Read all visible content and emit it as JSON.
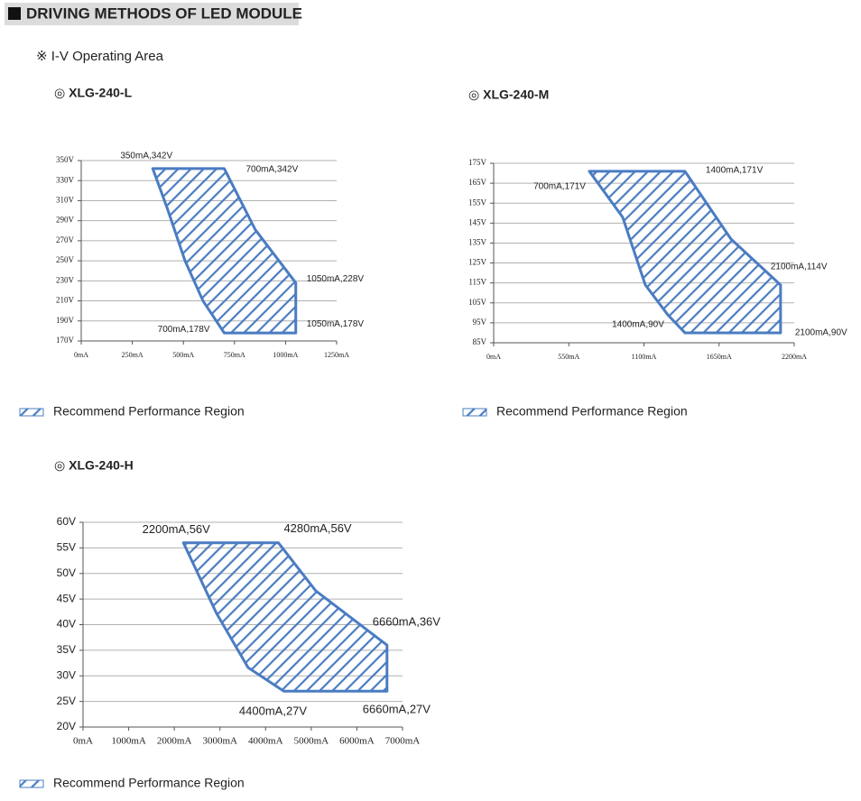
{
  "header": {
    "title": "DRIVING METHODS OF LED MODULE",
    "subtitle": "※ I-V Operating Area"
  },
  "chart_data": [
    {
      "type": "area",
      "title": "◎ XLG-240-L",
      "xlim": [
        0,
        1250
      ],
      "ylim": [
        170,
        350
      ],
      "xticks": [
        {
          "value": 0,
          "label": "0mA"
        },
        {
          "value": 250,
          "label": "250mA"
        },
        {
          "value": 500,
          "label": "500mA"
        },
        {
          "value": 750,
          "label": "750mA"
        },
        {
          "value": 1000,
          "label": "1000mA"
        },
        {
          "value": 1250,
          "label": "1250mA"
        }
      ],
      "yticks": [
        {
          "value": 170,
          "label": "170V"
        },
        {
          "value": 190,
          "label": "190V"
        },
        {
          "value": 210,
          "label": "210V"
        },
        {
          "value": 230,
          "label": "230V"
        },
        {
          "value": 250,
          "label": "250V"
        },
        {
          "value": 270,
          "label": "270V"
        },
        {
          "value": 290,
          "label": "290V"
        },
        {
          "value": 310,
          "label": "310V"
        },
        {
          "value": 330,
          "label": "330V"
        },
        {
          "value": 350,
          "label": "350V"
        }
      ],
      "grid": true,
      "series": [
        {
          "name": "Recommend Performance Region",
          "color": "#4a7cc2",
          "x": [
            350,
            700,
            852,
            1050,
            1050,
            700,
            596,
            508,
            420
          ],
          "values": [
            342,
            342,
            281,
            228,
            178,
            178,
            210,
            250,
            303
          ]
        }
      ],
      "annotations": [
        {
          "text": "350mA,342V",
          "x": 350,
          "y": 342
        },
        {
          "text": "700mA,342V",
          "x": 700,
          "y": 342
        },
        {
          "text": "1050mA,228V",
          "x": 1050,
          "y": 228
        },
        {
          "text": "1050mA,178V",
          "x": 1050,
          "y": 178
        },
        {
          "text": "700mA,178V",
          "x": 700,
          "y": 178
        }
      ]
    },
    {
      "type": "area",
      "title": "◎ XLG-240-M",
      "xlim": [
        0,
        2200
      ],
      "ylim": [
        85,
        175
      ],
      "xticks": [
        {
          "value": 0,
          "label": "0mA"
        },
        {
          "value": 550,
          "label": "550mA"
        },
        {
          "value": 1100,
          "label": "1100mA"
        },
        {
          "value": 1650,
          "label": "1650mA"
        },
        {
          "value": 2200,
          "label": "2200mA"
        }
      ],
      "yticks": [
        {
          "value": 85,
          "label": "85V"
        },
        {
          "value": 95,
          "label": "95V"
        },
        {
          "value": 105,
          "label": "105V"
        },
        {
          "value": 115,
          "label": "115V"
        },
        {
          "value": 125,
          "label": "125V"
        },
        {
          "value": 135,
          "label": "135V"
        },
        {
          "value": 145,
          "label": "145V"
        },
        {
          "value": 155,
          "label": "155V"
        },
        {
          "value": 165,
          "label": "165V"
        },
        {
          "value": 175,
          "label": "175V"
        }
      ],
      "grid": true,
      "series": [
        {
          "name": "Recommend Performance Region",
          "color": "#4a7cc2",
          "x": [
            700,
            1400,
            1737,
            2100,
            2100,
            1400,
            1275,
            1110,
            944
          ],
          "values": [
            171,
            171,
            137,
            114,
            90,
            90,
            99,
            114,
            148
          ]
        }
      ],
      "annotations": [
        {
          "text": "1400mA,171V",
          "x": 1400,
          "y": 171
        },
        {
          "text": "700mA,171V",
          "x": 700,
          "y": 171
        },
        {
          "text": "2100mA,114V",
          "x": 2100,
          "y": 114
        },
        {
          "text": "2100mA,90V",
          "x": 2100,
          "y": 90
        },
        {
          "text": "1400mA,90V",
          "x": 1400,
          "y": 90
        }
      ]
    },
    {
      "type": "area",
      "title": "◎ XLG-240-H",
      "xlim": [
        0,
        7000
      ],
      "ylim": [
        20,
        60
      ],
      "xticks": [
        {
          "value": 0,
          "label": "0mA"
        },
        {
          "value": 1000,
          "label": "1000mA"
        },
        {
          "value": 2000,
          "label": "2000mA"
        },
        {
          "value": 3000,
          "label": "3000mA"
        },
        {
          "value": 4000,
          "label": "4000mA"
        },
        {
          "value": 5000,
          "label": "5000mA"
        },
        {
          "value": 6000,
          "label": "6000mA"
        },
        {
          "value": 7000,
          "label": "7000mA"
        }
      ],
      "yticks": [
        {
          "value": 20,
          "label": "20V"
        },
        {
          "value": 25,
          "label": "25V"
        },
        {
          "value": 30,
          "label": "30V"
        },
        {
          "value": 35,
          "label": "35V"
        },
        {
          "value": 40,
          "label": "40V"
        },
        {
          "value": 45,
          "label": "45V"
        },
        {
          "value": 50,
          "label": "50V"
        },
        {
          "value": 55,
          "label": "55V"
        },
        {
          "value": 60,
          "label": "60V"
        }
      ],
      "grid": true,
      "series": [
        {
          "name": "Recommend Performance Region",
          "color": "#4a7cc2",
          "x": [
            2200,
            4280,
            5100,
            6660,
            6660,
            4400,
            3617,
            2925
          ],
          "values": [
            56,
            56,
            46.6,
            36,
            27,
            27,
            31.6,
            42.2
          ]
        }
      ],
      "annotations": [
        {
          "text": "2200mA,56V",
          "x": 2200,
          "y": 56
        },
        {
          "text": "4280mA,56V",
          "x": 4280,
          "y": 56
        },
        {
          "text": "6660mA,36V",
          "x": 6660,
          "y": 36
        },
        {
          "text": "6660mA,27V",
          "x": 6660,
          "y": 27
        },
        {
          "text": "4400mA,27V",
          "x": 4400,
          "y": 27
        }
      ]
    }
  ]
}
